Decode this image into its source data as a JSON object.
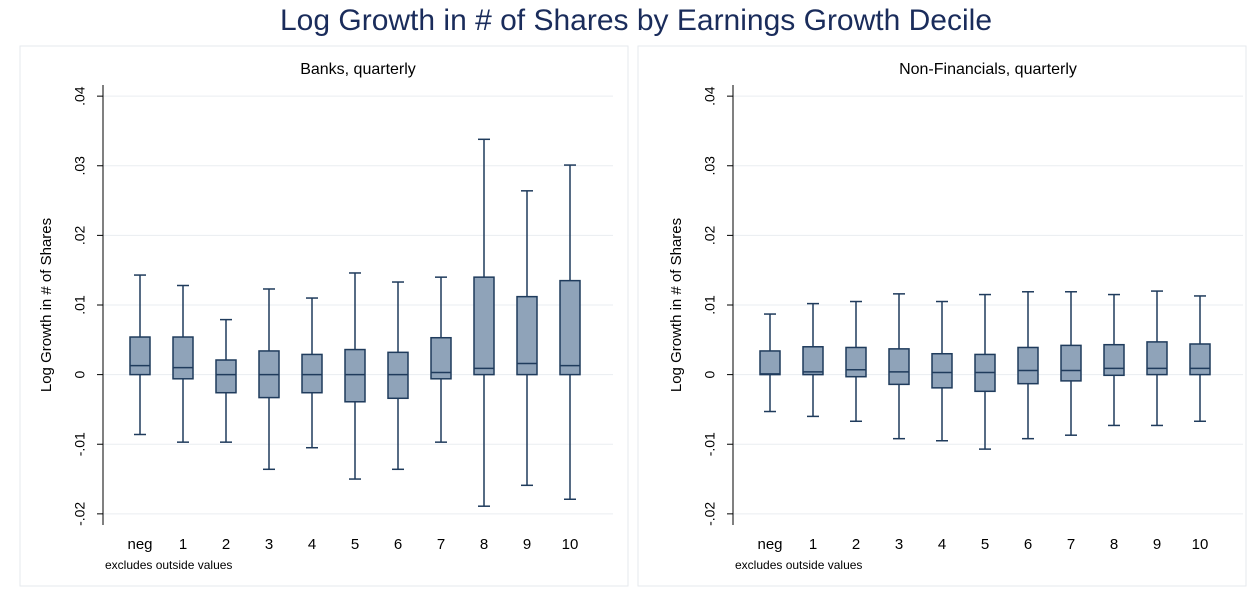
{
  "title": "Log Growth in # of Shares by Earnings Growth Decile",
  "chart_data": [
    {
      "type": "box",
      "subtitle": "Banks, quarterly",
      "ylabel": "Log Growth in # of Shares",
      "note": "excludes outside values",
      "categories": [
        "neg",
        "1",
        "2",
        "3",
        "4",
        "5",
        "6",
        "7",
        "8",
        "9",
        "10"
      ],
      "whisker_low": [
        -0.0086,
        -0.0097,
        -0.0097,
        -0.0136,
        -0.0105,
        -0.015,
        -0.0136,
        -0.0097,
        -0.0189,
        -0.0159,
        -0.0179
      ],
      "q1": [
        0,
        -0.0006,
        -0.0026,
        -0.0033,
        -0.0026,
        -0.0039,
        -0.0034,
        -0.0006,
        0,
        0,
        0
      ],
      "median": [
        0.0013,
        0.001,
        0,
        0,
        0,
        0,
        0,
        0.0003,
        0.0009,
        0.0016,
        0.0013
      ],
      "q3": [
        0.0054,
        0.0054,
        0.0021,
        0.0034,
        0.0029,
        0.0036,
        0.0032,
        0.0053,
        0.014,
        0.0112,
        0.0135
      ],
      "whisker_high": [
        0.0143,
        0.0128,
        0.0079,
        0.0123,
        0.011,
        0.0146,
        0.0133,
        0.014,
        0.0338,
        0.0264,
        0.0301
      ],
      "color": "#8fa3b9",
      "ylim": [
        -0.0216,
        0.0416
      ],
      "yticks": [
        {
          "value": -0.02,
          "label": "-.02"
        },
        {
          "value": -0.01,
          "label": "-.01"
        },
        0,
        {
          "value": 0.01,
          "label": ".01"
        },
        {
          "value": 0.02,
          "label": ".02"
        },
        {
          "value": 0.03,
          "label": ".03"
        },
        {
          "value": 0.04,
          "label": ".04"
        }
      ],
      "grid": true
    },
    {
      "type": "box",
      "subtitle": "Non-Financials, quarterly",
      "ylabel": "Log Growth in # of Shares",
      "note": "excludes outside values",
      "categories": [
        "neg",
        "1",
        "2",
        "3",
        "4",
        "5",
        "6",
        "7",
        "8",
        "9",
        "10"
      ],
      "whisker_low": [
        -0.0053,
        -0.006,
        -0.0067,
        -0.0092,
        -0.0095,
        -0.0107,
        -0.0092,
        -0.0087,
        -0.0073,
        -0.0073,
        -0.0067
      ],
      "q1": [
        0,
        0,
        -0.0003,
        -0.0014,
        -0.0019,
        -0.0024,
        -0.0013,
        -0.0009,
        -0.0001,
        0,
        0
      ],
      "median": [
        0.0001,
        0.0004,
        0.0007,
        0.0004,
        0.0003,
        0.0003,
        0.0006,
        0.0006,
        0.0009,
        0.0009,
        0.0009
      ],
      "q3": [
        0.0034,
        0.004,
        0.0039,
        0.0037,
        0.003,
        0.0029,
        0.0039,
        0.0042,
        0.0043,
        0.0047,
        0.0044
      ],
      "whisker_high": [
        0.0087,
        0.0102,
        0.0105,
        0.0116,
        0.0105,
        0.0115,
        0.0119,
        0.0119,
        0.0115,
        0.012,
        0.0113
      ],
      "color": "#8fa3b9",
      "ylim": [
        -0.0216,
        0.0416
      ],
      "yticks": [
        {
          "value": -0.02,
          "label": "-.02"
        },
        {
          "value": -0.01,
          "label": "-.01"
        },
        0,
        {
          "value": 0.01,
          "label": ".01"
        },
        {
          "value": 0.02,
          "label": ".02"
        },
        {
          "value": 0.03,
          "label": ".03"
        },
        {
          "value": 0.04,
          "label": ".04"
        }
      ],
      "grid": true
    }
  ]
}
